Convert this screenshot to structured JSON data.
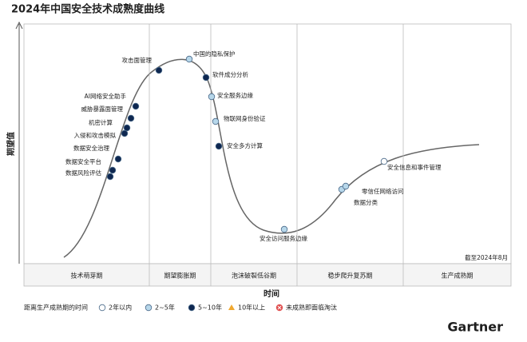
{
  "title": "2024年中国安全技术成熟度曲线",
  "y_axis_label": "期望值",
  "x_axis_label": "时间",
  "note": "截至2024年8月",
  "phases": [
    "技术萌芽期",
    "期望膨胀期",
    "泡沫破裂低谷期",
    "稳步爬升复苏期",
    "生产成熟期"
  ],
  "legend": {
    "title": "距离生产成熟期的时间",
    "items": [
      {
        "label": "2年以内",
        "color": "#ffffff"
      },
      {
        "label": "2~5年",
        "color": "#b7d7ea"
      },
      {
        "label": "5~10年",
        "color": "#0e2750"
      },
      {
        "label": "10年以上",
        "color": "#f0a830"
      },
      {
        "label": "未成熟即面临淘汰",
        "color": "#e05050"
      }
    ]
  },
  "points": [
    {
      "label": "数据风险评估",
      "maturity": "5~10年"
    },
    {
      "label": "数据安全平台",
      "maturity": "5~10年"
    },
    {
      "label": "数据安全治理",
      "maturity": "5~10年"
    },
    {
      "label": "入侵和攻击模拟",
      "maturity": "5~10年"
    },
    {
      "label": "机密计算",
      "maturity": "5~10年"
    },
    {
      "label": "威胁暴露面管理",
      "maturity": "5~10年"
    },
    {
      "label": "AI网络安全助手",
      "maturity": "5~10年"
    },
    {
      "label": "攻击面管理",
      "maturity": "5~10年"
    },
    {
      "label": "中国的隐私保护",
      "maturity": "2~5年"
    },
    {
      "label": "软件成分分析",
      "maturity": "5~10年"
    },
    {
      "label": "安全服务边缘",
      "maturity": "2~5年"
    },
    {
      "label": "物联网身份验证",
      "maturity": "2~5年"
    },
    {
      "label": "安全多方计算",
      "maturity": "5~10年"
    },
    {
      "label": "安全访问服务边缘",
      "maturity": "2~5年"
    },
    {
      "label": "数据分类",
      "maturity": "2~5年"
    },
    {
      "label": "零信任网络访问",
      "maturity": "2~5年"
    },
    {
      "label": "安全信息和事件管理",
      "maturity": "2年以内"
    }
  ],
  "watermark": "Gartner"
}
